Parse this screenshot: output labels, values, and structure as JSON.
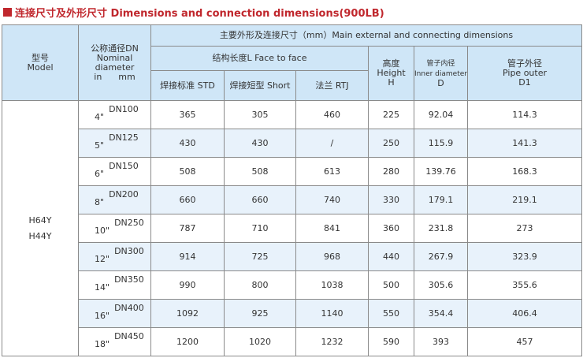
{
  "title": "连接尺寸及外形尺寸 Dimensions and connection dimensions(900LB)",
  "header": {
    "model_cn": "型号",
    "model_en": "Model",
    "dn_cn": "公称通径DN",
    "dn_en1": "Nominal",
    "dn_en2": "diameter",
    "dn_en3": "in      mm",
    "main": "主要外形及连接尺寸（mm）Main external and connecting dimensions",
    "face": "结构长度L  Face to face",
    "std": "焊接标准  STD",
    "short": "焊接短型  Short",
    "rtj": "法兰  RTJ",
    "height_cn": "高度",
    "height_en": "Height",
    "height_sym": "H",
    "inner_cn": "管子内径",
    "inner_en": "Inner diameter",
    "inner_sym": "D",
    "outer_cn": "管子外径",
    "outer_en": "Pipe outer",
    "outer_sym": "D1"
  },
  "models": [
    "H64Y",
    "H44Y"
  ],
  "rows": [
    {
      "inch": "4\"",
      "dn": "DN100",
      "std": "365",
      "short": "305",
      "rtj": "460",
      "h": "225",
      "d": "92.04",
      "d1": "114.3"
    },
    {
      "inch": "5\"",
      "dn": "DN125",
      "std": "430",
      "short": "430",
      "rtj": "/",
      "h": "250",
      "d": "115.9",
      "d1": "141.3"
    },
    {
      "inch": "6\"",
      "dn": "DN150",
      "std": "508",
      "short": "508",
      "rtj": "613",
      "h": "280",
      "d": "139.76",
      "d1": "168.3"
    },
    {
      "inch": "8\"",
      "dn": "DN200",
      "std": "660",
      "short": "660",
      "rtj": "740",
      "h": "330",
      "d": "179.1",
      "d1": "219.1"
    },
    {
      "inch": "10\"",
      "dn": "DN250",
      "std": "787",
      "short": "710",
      "rtj": "841",
      "h": "360",
      "d": "231.8",
      "d1": "273"
    },
    {
      "inch": "12\"",
      "dn": "DN300",
      "std": "914",
      "short": "725",
      "rtj": "968",
      "h": "440",
      "d": "267.9",
      "d1": "323.9"
    },
    {
      "inch": "14\"",
      "dn": "DN350",
      "std": "990",
      "short": "800",
      "rtj": "1038",
      "h": "500",
      "d": "305.6",
      "d1": "355.6"
    },
    {
      "inch": "16\"",
      "dn": "DN400",
      "std": "1092",
      "short": "925",
      "rtj": "1140",
      "h": "550",
      "d": "354.4",
      "d1": "406.4"
    },
    {
      "inch": "18\"",
      "dn": "DN450",
      "std": "1200",
      "short": "1020",
      "rtj": "1232",
      "h": "590",
      "d": "393",
      "d1": "457"
    }
  ]
}
